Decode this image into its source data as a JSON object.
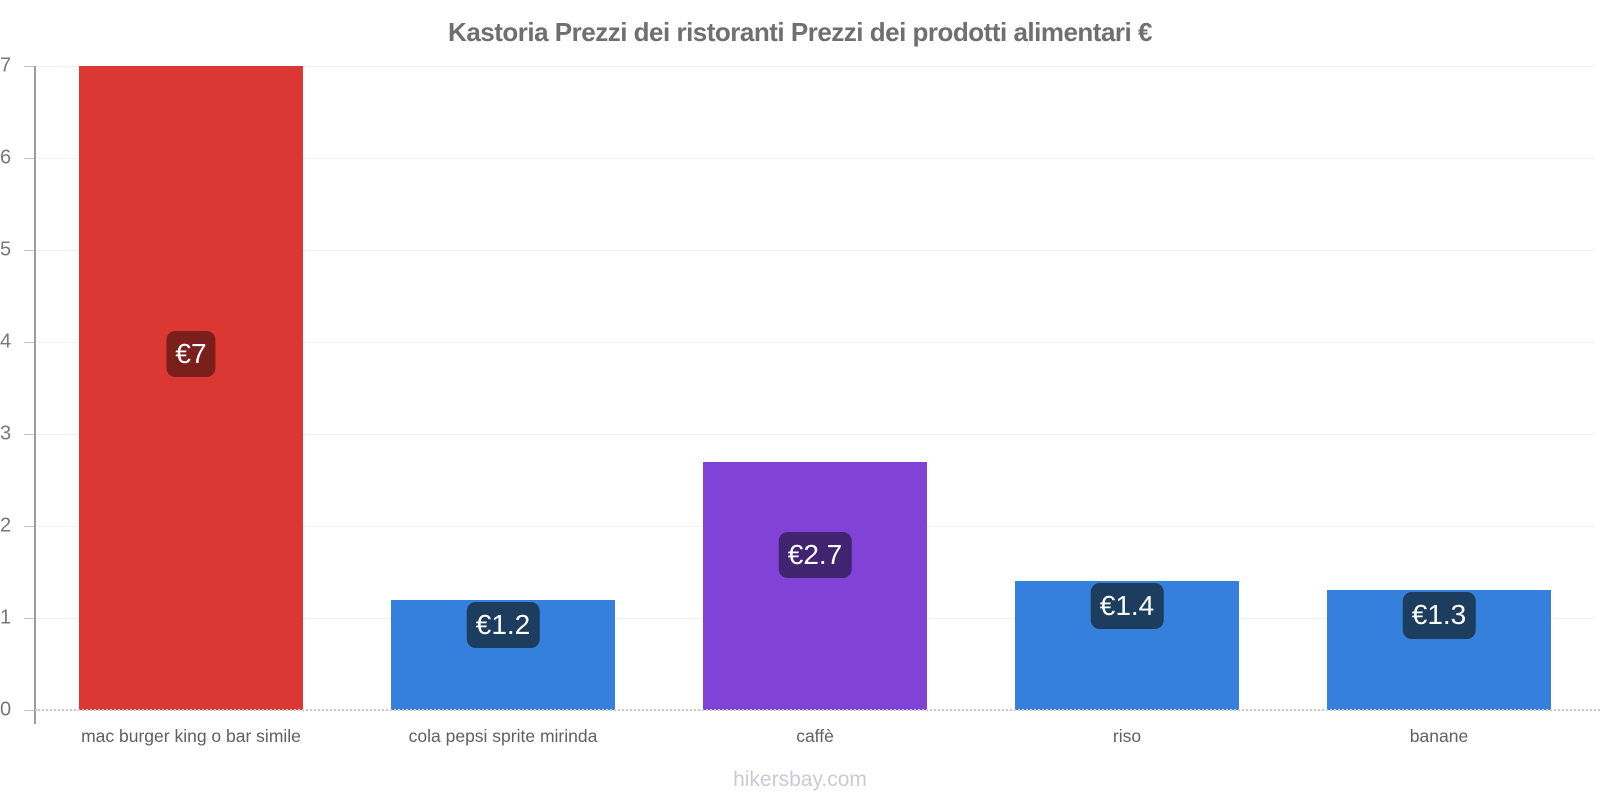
{
  "title": "Kastoria Prezzi dei ristoranti Prezzi dei prodotti alimentari €",
  "footer": "hikersbay.com",
  "colors": {
    "red_bar": "#db3733",
    "blue_bar": "#3580dd",
    "purple_bar": "#8142d8",
    "red_badge": "#7a1f1b",
    "navy_badge": "#1d3d5e",
    "purple_badge": "#412470",
    "title_text": "#6f6f6f",
    "axis_line": "#9d9d9d",
    "gridline": "#f2f2f2",
    "tick_text": "#787878",
    "category_text": "#606060",
    "footer_text": "#c9cbd1"
  },
  "chart_data": {
    "type": "bar",
    "title": "Kastoria Prezzi dei ristoranti Prezzi dei prodotti alimentari €",
    "categories": [
      "mac burger king o bar simile",
      "cola pepsi sprite mirinda",
      "caffè",
      "riso",
      "banane"
    ],
    "values": [
      7,
      1.2,
      2.7,
      1.4,
      1.3
    ],
    "data_labels": [
      "€7",
      "€1.2",
      "€2.7",
      "€1.4",
      "€1.3"
    ],
    "bar_colors": [
      "#db3733",
      "#3580dd",
      "#8142d8",
      "#3580dd",
      "#3580dd"
    ],
    "badge_colors": [
      "#7a1f1b",
      "#1d3d5e",
      "#412470",
      "#1d3d5e",
      "#1d3d5e"
    ],
    "currency": "€",
    "xlabel": "",
    "ylabel": "",
    "ylim": [
      0,
      7
    ],
    "yticks": [
      0,
      1,
      2,
      3,
      4,
      5,
      6,
      7
    ],
    "grid": true,
    "legend": "none",
    "watermark": "hikersbay.com"
  }
}
